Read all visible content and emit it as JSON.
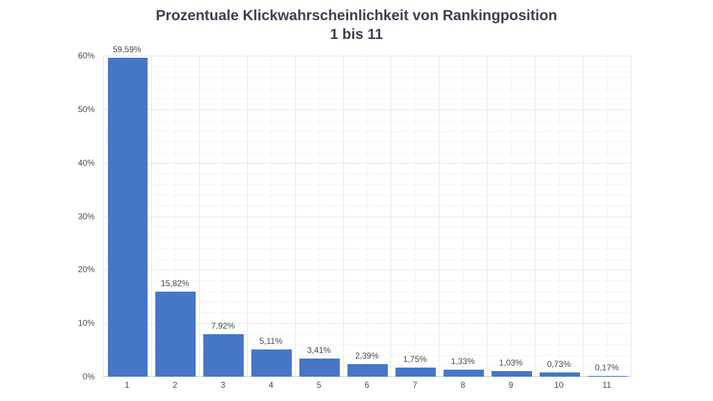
{
  "title_line1": "Prozentuale Klickwahrscheinlichkeit  von Rankingposition",
  "title_line2": "1 bis 11",
  "colors": {
    "bar": "#4776c6",
    "grid": "#e3e6ed",
    "text": "#404854",
    "title": "#3a4250"
  },
  "chart_data": {
    "type": "bar",
    "title": "Prozentuale Klickwahrscheinlichkeit  von Rankingposition 1 bis 11",
    "xlabel": "",
    "ylabel": "",
    "categories": [
      "1",
      "2",
      "3",
      "4",
      "5",
      "6",
      "7",
      "8",
      "9",
      "10",
      "11"
    ],
    "values": [
      59.59,
      15.82,
      7.92,
      5.11,
      3.41,
      2.39,
      1.75,
      1.33,
      1.03,
      0.73,
      0.17
    ],
    "data_labels": [
      "59,59%",
      "15,82%",
      "7,92%",
      "5,11%",
      "3,41%",
      "2,39%",
      "1,75%",
      "1,33%",
      "1,03%",
      "0,73%",
      "0,17%"
    ],
    "ylim": [
      0,
      60
    ],
    "yticks": [
      "0%",
      "10%",
      "20%",
      "30%",
      "40%",
      "50%",
      "60%"
    ],
    "grid": true,
    "legend": "none"
  }
}
